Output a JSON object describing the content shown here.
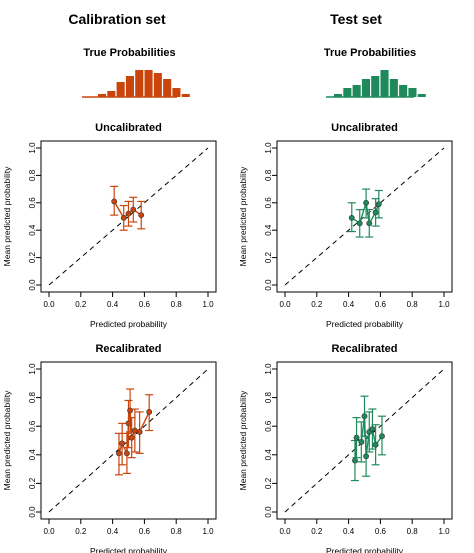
{
  "colors": {
    "calibration": "#c9450c",
    "test": "#1e8a5c",
    "axis": "#000000",
    "diagonal": "#000000",
    "background": "#ffffff"
  },
  "chart_data": [
    {
      "type": "bar",
      "panel": "calibration-histogram",
      "group_title": "Calibration set",
      "title": "True Probabilities",
      "color_key": "calibration",
      "values": [
        1,
        2,
        5,
        7,
        9,
        9,
        8,
        6,
        3,
        1
      ]
    },
    {
      "type": "bar",
      "panel": "test-histogram",
      "group_title": "Test set",
      "title": "True Probabilities",
      "color_key": "test",
      "values": [
        1,
        3,
        4,
        6,
        7,
        9,
        6,
        4,
        3,
        1
      ]
    },
    {
      "type": "scatter",
      "panel": "calibration-uncalibrated",
      "title": "Uncalibrated",
      "xlabel": "Predicted probability",
      "ylabel": "Mean predicted probability",
      "xlim": [
        0,
        1
      ],
      "ylim": [
        0,
        1
      ],
      "ticks": [
        "0.0",
        "0.2",
        "0.4",
        "0.6",
        "0.8",
        "1.0"
      ],
      "color_key": "calibration",
      "diagonal": true,
      "points": [
        {
          "x": 0.41,
          "y": 0.61,
          "lo": 0.51,
          "hi": 0.72
        },
        {
          "x": 0.47,
          "y": 0.49,
          "lo": 0.4,
          "hi": 0.58
        },
        {
          "x": 0.5,
          "y": 0.52,
          "lo": 0.43,
          "hi": 0.61
        },
        {
          "x": 0.53,
          "y": 0.55,
          "lo": 0.46,
          "hi": 0.64
        },
        {
          "x": 0.58,
          "y": 0.51,
          "lo": 0.41,
          "hi": 0.61
        }
      ]
    },
    {
      "type": "scatter",
      "panel": "test-uncalibrated",
      "title": "Uncalibrated",
      "xlabel": "Predicted probability",
      "ylabel": "Mean predicted probability",
      "xlim": [
        0,
        1
      ],
      "ylim": [
        0,
        1
      ],
      "ticks": [
        "0.0",
        "0.2",
        "0.4",
        "0.6",
        "0.8",
        "1.0"
      ],
      "color_key": "test",
      "diagonal": true,
      "points": [
        {
          "x": 0.42,
          "y": 0.49,
          "lo": 0.39,
          "hi": 0.6
        },
        {
          "x": 0.47,
          "y": 0.45,
          "lo": 0.35,
          "hi": 0.55
        },
        {
          "x": 0.51,
          "y": 0.6,
          "lo": 0.49,
          "hi": 0.7
        },
        {
          "x": 0.53,
          "y": 0.45,
          "lo": 0.35,
          "hi": 0.55
        },
        {
          "x": 0.57,
          "y": 0.53,
          "lo": 0.43,
          "hi": 0.63
        },
        {
          "x": 0.59,
          "y": 0.59,
          "lo": 0.49,
          "hi": 0.69
        }
      ]
    },
    {
      "type": "scatter",
      "panel": "calibration-recalibrated",
      "title": "Recalibrated",
      "xlabel": "Predicted probability",
      "ylabel": "Mean predicted probability",
      "xlim": [
        0,
        1
      ],
      "ylim": [
        0,
        1
      ],
      "ticks": [
        "0.0",
        "0.2",
        "0.4",
        "0.6",
        "0.8",
        "1.0"
      ],
      "color_key": "calibration",
      "diagonal": true,
      "points": [
        {
          "x": 0.44,
          "y": 0.41,
          "lo": 0.26,
          "hi": 0.55
        },
        {
          "x": 0.46,
          "y": 0.48,
          "lo": 0.33,
          "hi": 0.62
        },
        {
          "x": 0.49,
          "y": 0.41,
          "lo": 0.27,
          "hi": 0.55
        },
        {
          "x": 0.5,
          "y": 0.62,
          "lo": 0.45,
          "hi": 0.78
        },
        {
          "x": 0.51,
          "y": 0.71,
          "lo": 0.56,
          "hi": 0.86
        },
        {
          "x": 0.52,
          "y": 0.52,
          "lo": 0.38,
          "hi": 0.66
        },
        {
          "x": 0.54,
          "y": 0.57,
          "lo": 0.42,
          "hi": 0.72
        },
        {
          "x": 0.57,
          "y": 0.56,
          "lo": 0.41,
          "hi": 0.7
        },
        {
          "x": 0.63,
          "y": 0.7,
          "lo": 0.57,
          "hi": 0.82
        }
      ]
    },
    {
      "type": "scatter",
      "panel": "test-recalibrated",
      "title": "Recalibrated",
      "xlabel": "Predicted probability",
      "ylabel": "Mean predicted probability",
      "xlim": [
        0,
        1
      ],
      "ylim": [
        0,
        1
      ],
      "ticks": [
        "0.0",
        "0.2",
        "0.4",
        "0.6",
        "0.8",
        "1.0"
      ],
      "color_key": "test",
      "diagonal": true,
      "points": [
        {
          "x": 0.44,
          "y": 0.36,
          "lo": 0.22,
          "hi": 0.5
        },
        {
          "x": 0.45,
          "y": 0.52,
          "lo": 0.38,
          "hi": 0.66
        },
        {
          "x": 0.48,
          "y": 0.49,
          "lo": 0.35,
          "hi": 0.63
        },
        {
          "x": 0.5,
          "y": 0.67,
          "lo": 0.53,
          "hi": 0.81
        },
        {
          "x": 0.51,
          "y": 0.39,
          "lo": 0.25,
          "hi": 0.53
        },
        {
          "x": 0.53,
          "y": 0.56,
          "lo": 0.42,
          "hi": 0.7
        },
        {
          "x": 0.55,
          "y": 0.58,
          "lo": 0.44,
          "hi": 0.72
        },
        {
          "x": 0.57,
          "y": 0.47,
          "lo": 0.33,
          "hi": 0.61
        },
        {
          "x": 0.61,
          "y": 0.53,
          "lo": 0.4,
          "hi": 0.67
        }
      ]
    }
  ]
}
